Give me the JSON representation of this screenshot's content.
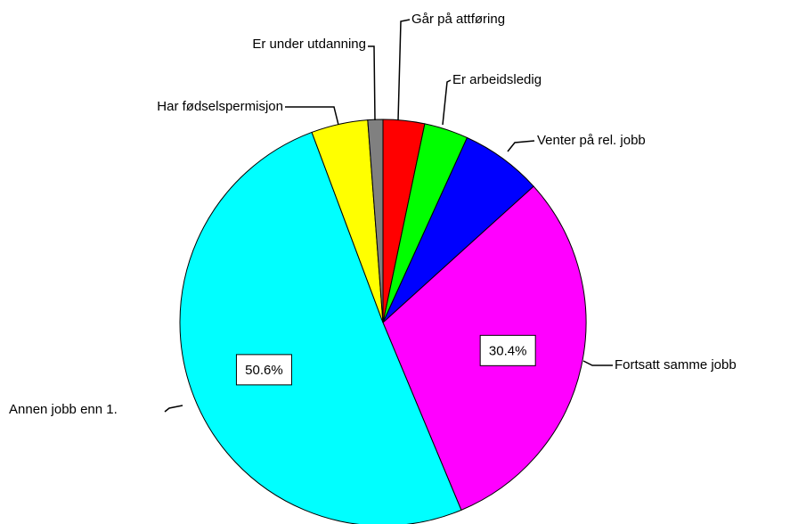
{
  "chart_data": {
    "type": "pie",
    "categories": [
      "Går på attføring",
      "Er arbeidsledig",
      "Venter på rel. jobb",
      "Fortsatt samme jobb",
      "Annen jobb enn 1.",
      "Har fødselspermisjon",
      "Er under utdanning"
    ],
    "values": [
      3.3,
      3.5,
      6.5,
      30.4,
      50.6,
      4.5,
      1.2
    ],
    "value_labels": [
      null,
      null,
      null,
      "30.4%",
      "50.6%",
      null,
      null
    ],
    "colors": [
      "#ff0000",
      "#00ff00",
      "#0000ff",
      "#ff00ff",
      "#00ffff",
      "#ffff00",
      "#808080"
    ]
  }
}
